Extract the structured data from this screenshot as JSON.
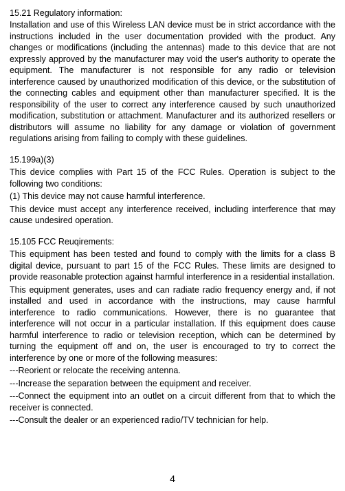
{
  "section1": {
    "title": "15.21 Regulatory  information:",
    "body": "Installation and use of this Wireless LAN device must be in strict accordance with the instructions included in the user documentation provided with the product. Any changes or modifications (including the antennas) made to this device that are not expressly approved by the manufacturer may void the user's authority to operate the equipment. The manufacturer is not responsible for any radio or television interference caused by unauthorized modification of this device, or the substitution of the connecting cables and equipment other than manufacturer specified. It is the responsibility of the user to correct any interference caused by such unauthorized modification, substitution or attachment. Manufacturer and its authorized resellers or distributors will assume no liability for any damage or violation of government regulations arising from failing to comply with these guidelines."
  },
  "section2": {
    "title": "15.199a)(3)",
    "p1": "This device complies with Part 15 of the FCC Rules. Operation is subject to the following two conditions:",
    "p2": "(1) This device may not cause harmful interference.",
    "p3": "This device must accept any interference received, including interference that may cause undesired operation."
  },
  "section3": {
    "title": "15.105 FCC Reuqirements:",
    "p1": "This equipment has been tested and found to comply with the limits for a class B digital device, pursuant to part 15 of the FCC Rules. These limits are designed to provide reasonable protection against harmful interference in a residential installation.",
    "p2": "This equipment generates, uses and can radiate radio frequency energy and, if not installed and used in accordance with the instructions, may cause harmful interference to radio communications. However, there is no guarantee that interference will not occur in a particular installation. If this equipment does cause harmful interference to radio or television reception, which can be determined by turning the equipment off and on, the user is encouraged to try to correct the interference by one or more of the following measures:",
    "b1": "---Reorient or relocate the receiving antenna.",
    "b2": "---Increase the separation between the equipment and receiver.",
    "b3": "---Connect the equipment into an outlet on a circuit different from that to which the receiver is connected.",
    "b4": "---Consult the dealer or an experienced radio/TV technician for help."
  },
  "pageNumber": "4"
}
